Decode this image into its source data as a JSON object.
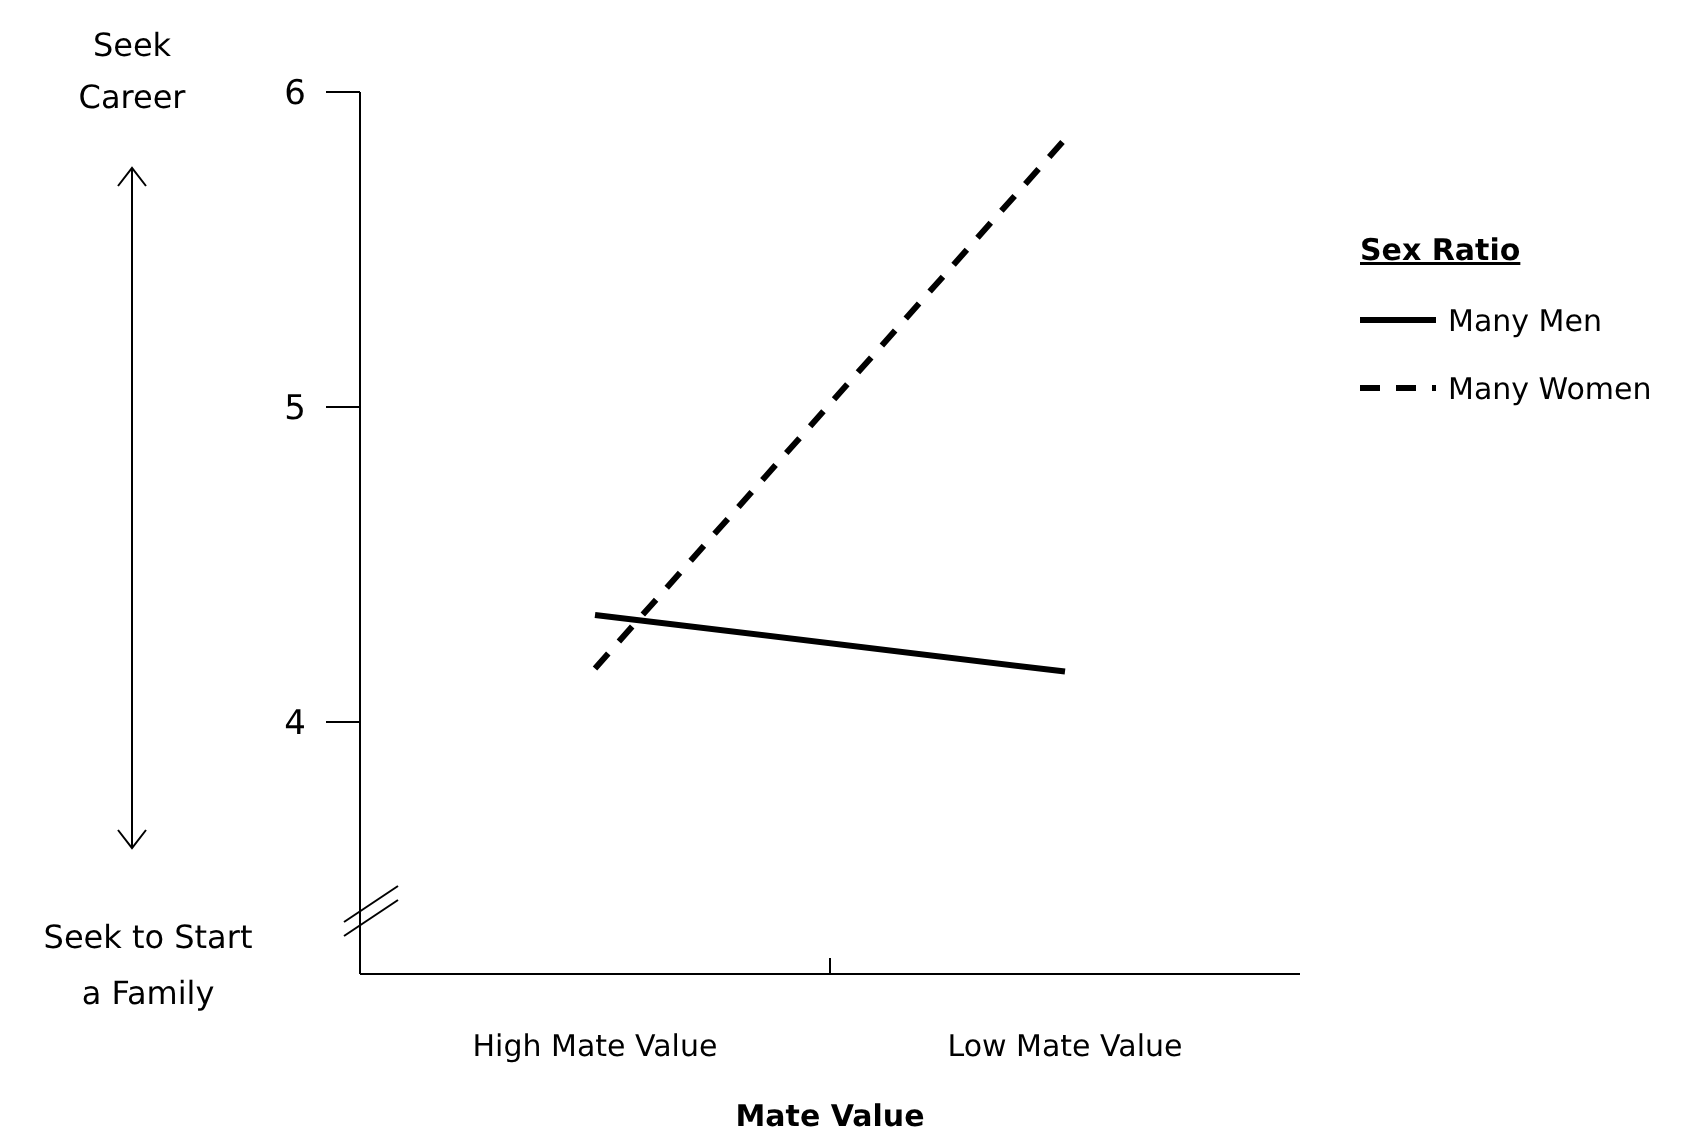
{
  "chart_data": {
    "type": "line",
    "xlabel": "Mate Value",
    "categories": [
      "High Mate Value",
      "Low Mate Value"
    ],
    "series": [
      {
        "name": "Many Men",
        "color": "#000000",
        "values": [
          4.34,
          4.16
        ],
        "line_style": "solid"
      },
      {
        "name": "Many Women",
        "color": "#000000",
        "values": [
          4.17,
          5.85
        ],
        "line_style": "dashed"
      }
    ],
    "ylim": [
      3.2,
      6
    ],
    "yticks": [
      4,
      5,
      6
    ],
    "legend_title": "Sex Ratio",
    "legend": "right",
    "grid": false,
    "marker": "none",
    "annotations": [
      "Seek Career",
      "Seek to Start a Family"
    ]
  }
}
